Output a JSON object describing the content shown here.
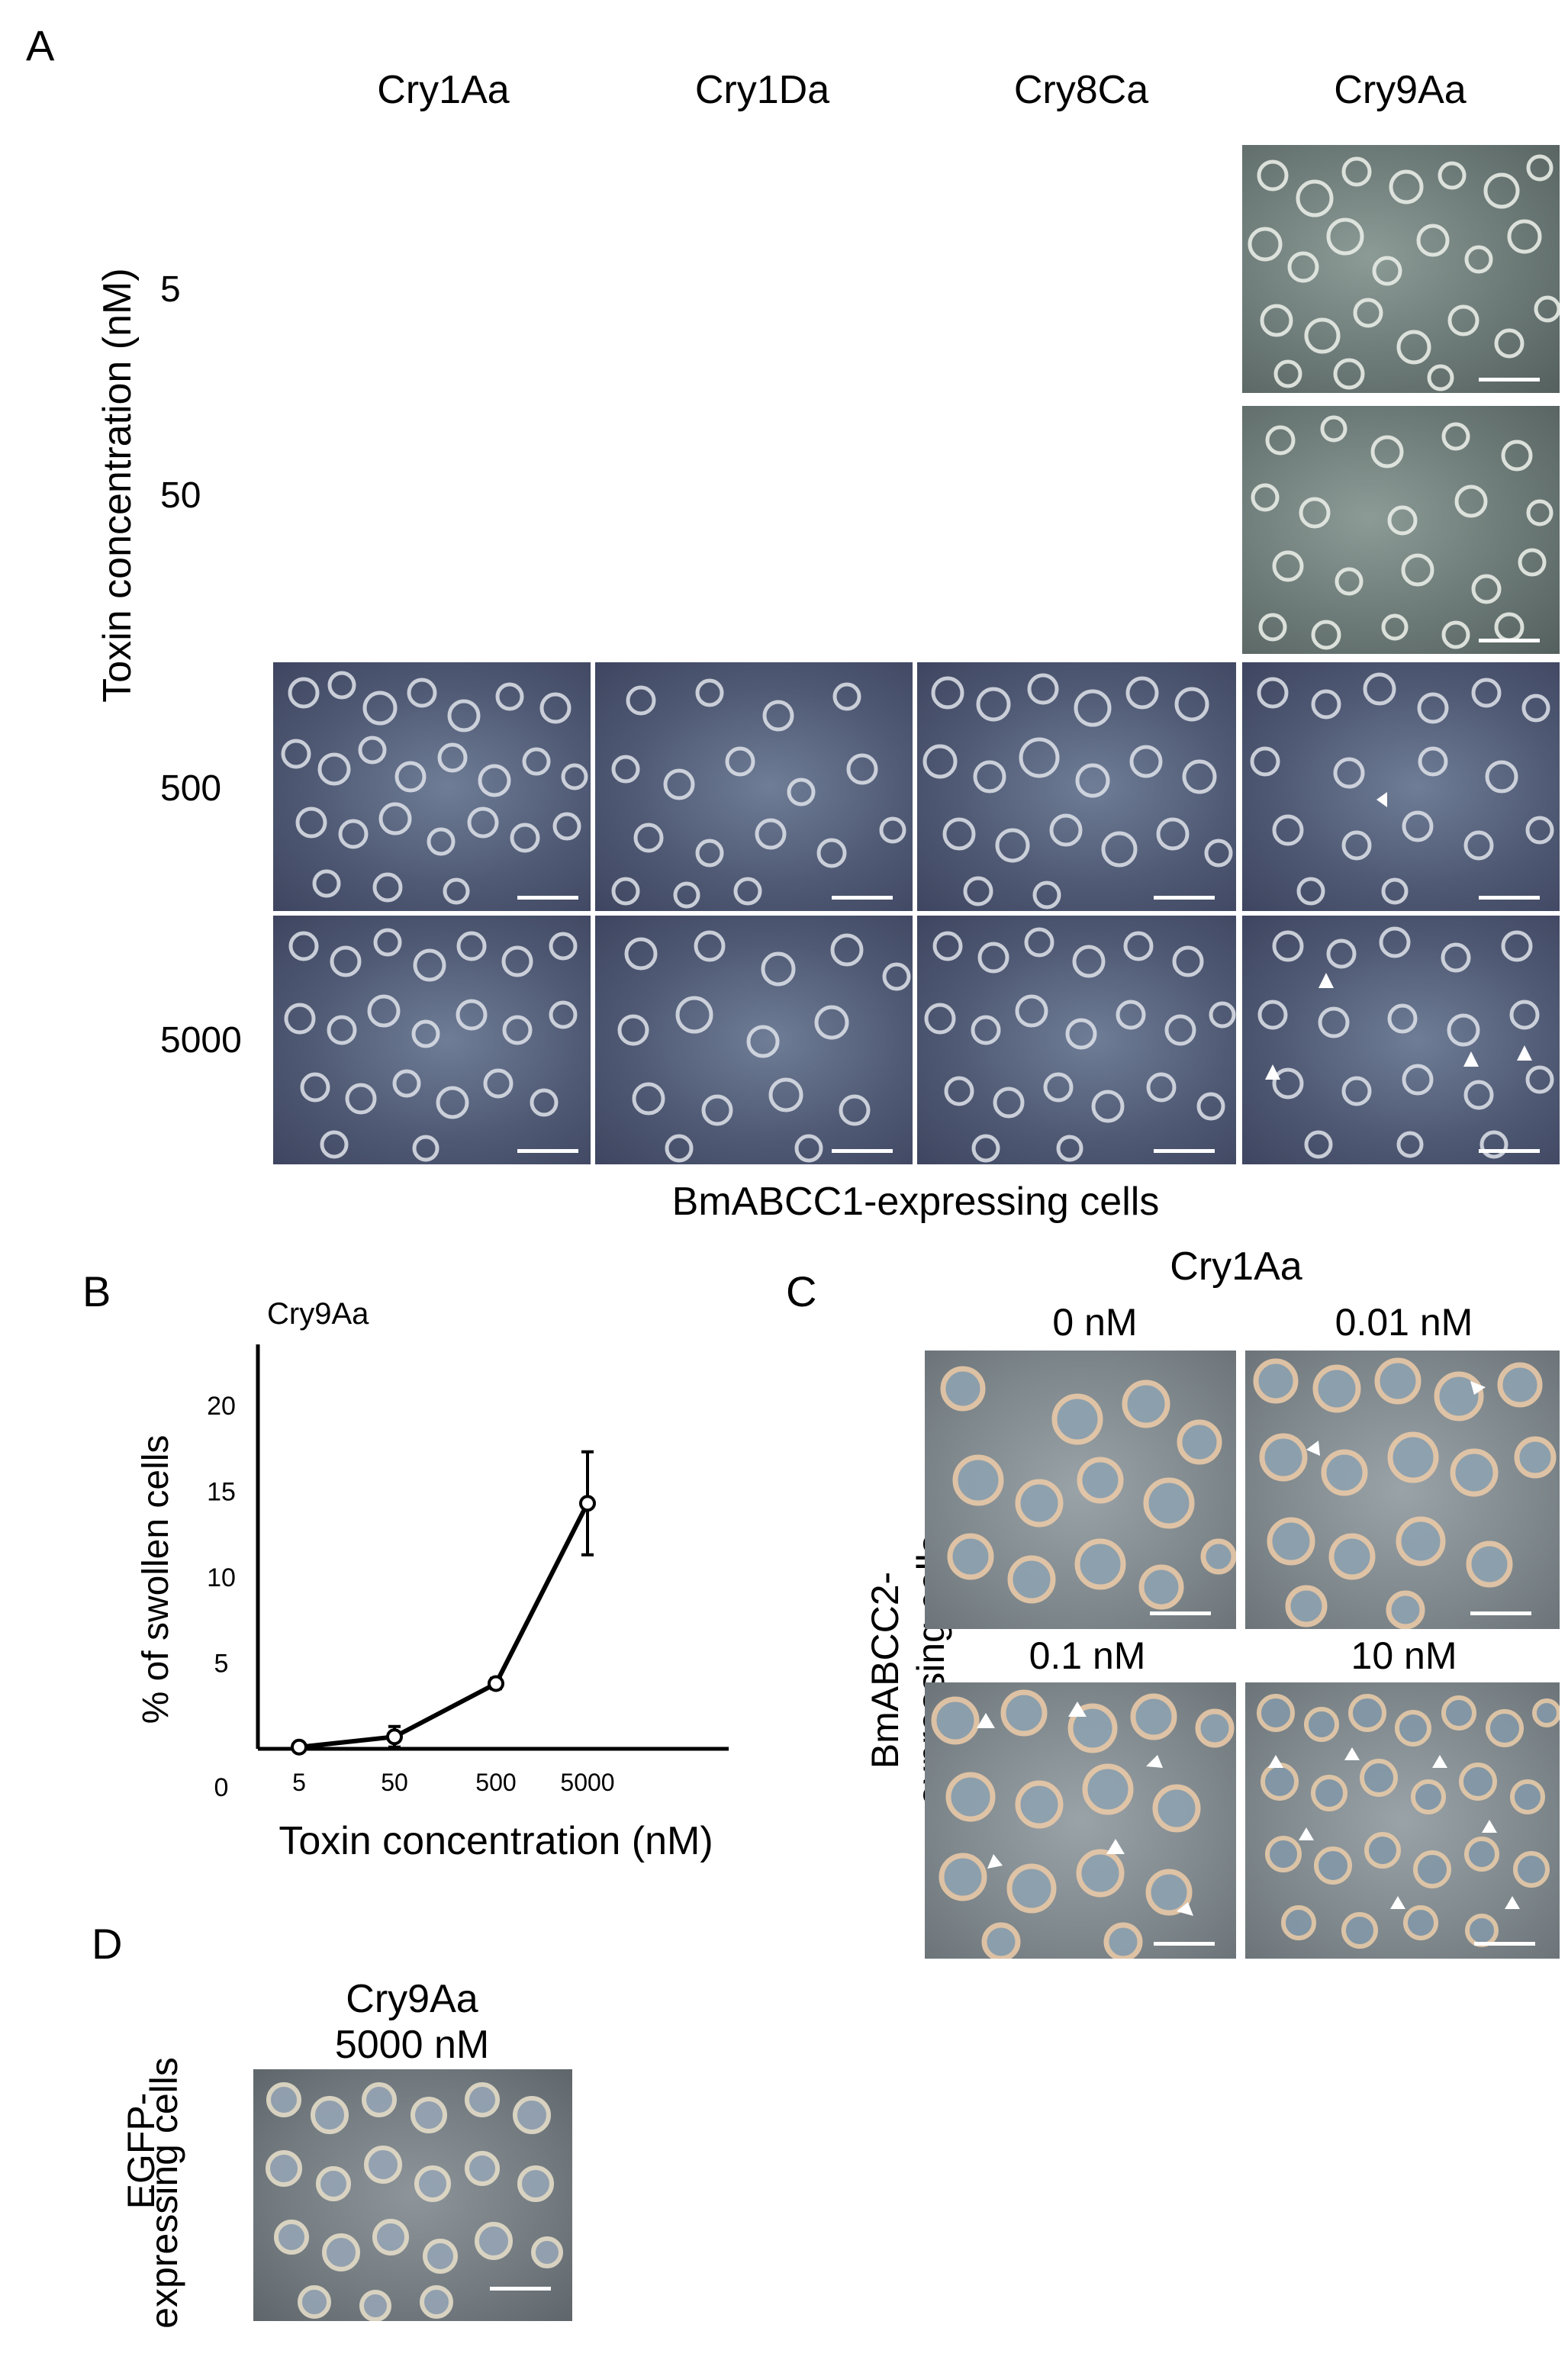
{
  "panel_a": {
    "letter": "A",
    "columns": [
      "Cry1Aa",
      "Cry1Da",
      "Cry8Ca",
      "Cry9Aa"
    ],
    "y_axis_title": "Toxin concentration (nM)",
    "rows": [
      "5",
      "50",
      "500",
      "5000"
    ],
    "caption": "BmABCC1-expressing cells"
  },
  "panel_b": {
    "letter": "B",
    "chart_title": "Cry9Aa"
  },
  "panel_c": {
    "letter": "C",
    "title": "Cry1Aa",
    "conditions": [
      "0 nM",
      "0.01 nM",
      "0.1 nM",
      "10 nM"
    ],
    "y_label_line1": "BmABCC2-",
    "y_label_line2": "expressing cells"
  },
  "panel_d": {
    "letter": "D",
    "title_line1": "Cry9Aa",
    "title_line2": "5000 nM",
    "y_label_line1": "EGFP-",
    "y_label_line2": "expressing cells"
  },
  "chart_data": {
    "type": "line",
    "title": "Cry9Aa",
    "xlabel": "Toxin concentration (nM)",
    "ylabel": "% of swollen cells",
    "categories": [
      "5",
      "50",
      "500",
      "5000"
    ],
    "values": [
      0.1,
      0.7,
      3.8,
      14.3
    ],
    "error": [
      0.0,
      0.6,
      0.3,
      3.0
    ],
    "y_ticks": [
      "20",
      "15",
      "10",
      "5",
      "0"
    ],
    "ylim": [
      0,
      20
    ],
    "grid": false
  }
}
